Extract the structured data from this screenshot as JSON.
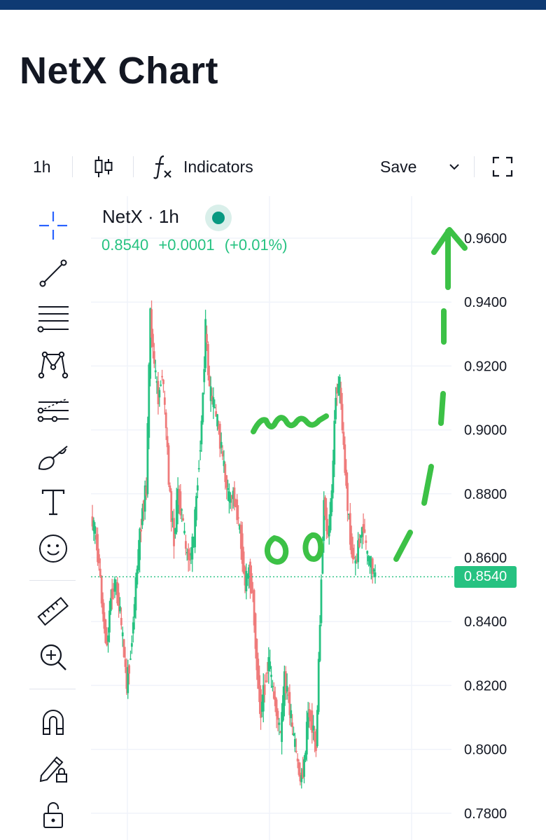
{
  "page": {
    "title": "NetX Chart"
  },
  "toolbar": {
    "interval": "1h",
    "chart_type_icon": "candles-icon",
    "indicators_label": "Indicators",
    "save_label": "Save",
    "fullscreen_icon": "fullscreen-icon"
  },
  "left_tools": [
    "crosshair-icon",
    "trend-line-icon",
    "fib-retracement-icon",
    "pattern-icon",
    "prediction-icon",
    "brush-icon",
    "text-icon",
    "emoji-icon",
    "ruler-icon",
    "zoom-in-icon",
    "magnet-icon",
    "lock-drawing-icon",
    "unlock-icon"
  ],
  "legend": {
    "symbol": "NetX · 1h",
    "price": "0.8540",
    "change": "+0.0001",
    "change_pct": "(+0.01%)"
  },
  "colors": {
    "up": "#26c281",
    "down": "#ef7b7b",
    "annotation": "#3cc146",
    "header": "#0e3a73"
  },
  "chart_data": {
    "type": "candlestick",
    "title": "",
    "xlabel": "",
    "ylabel": "",
    "ylim": [
      0.775,
      0.965
    ],
    "y_ticks": [
      "0.9600",
      "0.9400",
      "0.9200",
      "0.9000",
      "0.8800",
      "0.8600",
      "0.8400",
      "0.8200",
      "0.8000",
      "0.7800"
    ],
    "y_tick_values": [
      0.96,
      0.94,
      0.92,
      0.9,
      0.88,
      0.86,
      0.84,
      0.82,
      0.8,
      0.78
    ],
    "last_price": 0.854,
    "last_price_label": "0.8540",
    "close_path": [
      0.872,
      0.868,
      0.858,
      0.842,
      0.832,
      0.848,
      0.852,
      0.846,
      0.834,
      0.82,
      0.83,
      0.846,
      0.862,
      0.875,
      0.882,
      0.936,
      0.92,
      0.91,
      0.918,
      0.9,
      0.878,
      0.866,
      0.88,
      0.874,
      0.862,
      0.86,
      0.866,
      0.885,
      0.902,
      0.932,
      0.912,
      0.908,
      0.902,
      0.894,
      0.885,
      0.878,
      0.88,
      0.874,
      0.865,
      0.852,
      0.856,
      0.848,
      0.826,
      0.812,
      0.82,
      0.828,
      0.818,
      0.812,
      0.804,
      0.822,
      0.816,
      0.806,
      0.798,
      0.79,
      0.795,
      0.812,
      0.808,
      0.8,
      0.84,
      0.878,
      0.866,
      0.88,
      0.912,
      0.914,
      0.894,
      0.876,
      0.862,
      0.858,
      0.866,
      0.87,
      0.86,
      0.858,
      0.854
    ]
  }
}
